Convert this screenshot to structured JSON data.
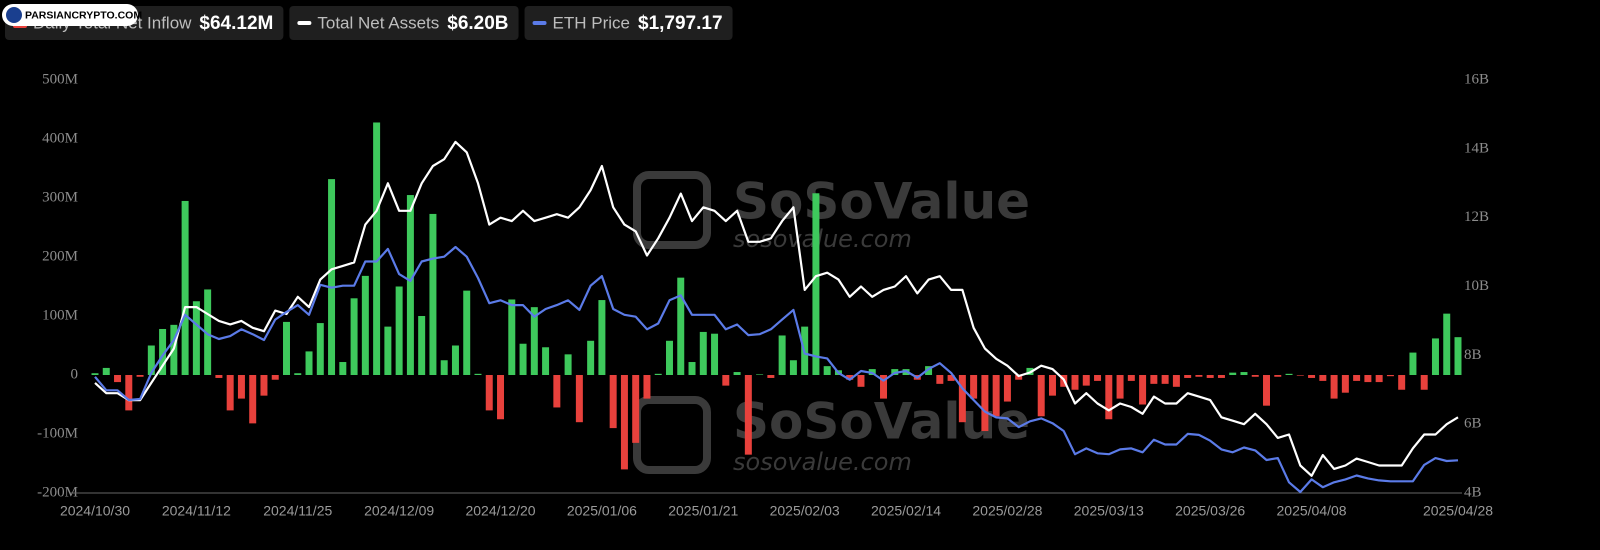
{
  "chart_data": {
    "type": "bar",
    "watermark": {
      "brand": "SoSoValue",
      "site": "sosovalue.com",
      "logo": "PARSIANCRYPTO.COM"
    },
    "categories": [
      "2024/10/30",
      null,
      null,
      null,
      null,
      null,
      null,
      null,
      null,
      "2024/11/12",
      null,
      null,
      null,
      null,
      null,
      null,
      null,
      null,
      "2024/11/25",
      null,
      null,
      null,
      null,
      null,
      null,
      null,
      null,
      "2024/12/09",
      null,
      null,
      null,
      null,
      null,
      null,
      null,
      null,
      "2024/12/20",
      null,
      null,
      null,
      null,
      null,
      null,
      null,
      null,
      "2025/01/06",
      null,
      null,
      null,
      null,
      null,
      null,
      null,
      null,
      "2025/01/21",
      null,
      null,
      null,
      null,
      null,
      null,
      null,
      null,
      "2025/02/03",
      null,
      null,
      null,
      null,
      null,
      null,
      null,
      null,
      "2025/02/14",
      null,
      null,
      null,
      null,
      null,
      null,
      null,
      null,
      "2025/02/28",
      null,
      null,
      null,
      null,
      null,
      null,
      null,
      null,
      "2025/03/13",
      null,
      null,
      null,
      null,
      null,
      null,
      null,
      null,
      "2025/03/26",
      null,
      null,
      null,
      null,
      null,
      null,
      null,
      null,
      "2025/04/08",
      null,
      null,
      null,
      null,
      null,
      null,
      null,
      null,
      null,
      null,
      null,
      null,
      "2025/04/28"
    ],
    "ylim": [
      -200,
      500
    ],
    "yticks": [
      {
        "value": -200,
        "label": "-200M"
      },
      {
        "value": -100,
        "label": "-100M"
      },
      0,
      {
        "value": 100,
        "label": "100M"
      },
      {
        "value": 200,
        "label": "200M"
      },
      {
        "value": 300,
        "label": "300M"
      },
      {
        "value": 400,
        "label": "400M"
      },
      {
        "value": 500,
        "label": "500M"
      }
    ],
    "y2lim": [
      4,
      16
    ],
    "y2ticks": [
      {
        "value": 4,
        "label": "4B"
      },
      {
        "value": 6,
        "label": "6B"
      },
      {
        "value": 8,
        "label": "8B"
      },
      {
        "value": 10,
        "label": "10B"
      },
      {
        "value": 12,
        "label": "12B"
      },
      {
        "value": 14,
        "label": "14B"
      },
      {
        "value": 16,
        "label": "16B"
      }
    ],
    "series": [
      {
        "name": "Daily Total Net Inflow",
        "legend_value": "$64.12M",
        "type": "bar",
        "color": "#e8413c",
        "positive_color": "#3ec95c",
        "values": [
          3,
          12,
          -12,
          -60,
          -3,
          50,
          78,
          85,
          295,
          125,
          145,
          -5,
          -60,
          -40,
          -82,
          -35,
          -8,
          90,
          3,
          40,
          88,
          332,
          22,
          130,
          168,
          428,
          82,
          150,
          305,
          100,
          273,
          25,
          50,
          143,
          2,
          -60,
          -75,
          128,
          53,
          115,
          47,
          -55,
          35,
          -80,
          58,
          127,
          -90,
          -160,
          -115,
          -40,
          2,
          58,
          165,
          22,
          73,
          70,
          -18,
          5,
          -135,
          1,
          -5,
          67,
          25,
          82,
          308,
          15,
          8,
          -8,
          -20,
          10,
          -40,
          10,
          10,
          -8,
          15,
          -15,
          -10,
          -80,
          -40,
          -95,
          -70,
          -45,
          -8,
          12,
          -70,
          -35,
          -20,
          -25,
          -18,
          -10,
          -75,
          -40,
          -10,
          -50,
          -15,
          -15,
          -20,
          -5,
          -3,
          -5,
          -5,
          4,
          5,
          -3,
          -52,
          -3,
          2,
          -1,
          -5,
          -10,
          -40,
          -30,
          -10,
          -12,
          -12,
          -2,
          -25,
          38,
          -25,
          62,
          104,
          64.12
        ]
      },
      {
        "name": "Total Net Assets",
        "legend_value": "$6.20B",
        "type": "line",
        "axis": "y2",
        "color": "#ffffff",
        "values": [
          7.2,
          6.9,
          6.9,
          6.7,
          6.7,
          7.2,
          7.7,
          8.2,
          9.4,
          9.4,
          9.2,
          9.0,
          8.9,
          9.0,
          8.8,
          8.7,
          9.3,
          9.2,
          9.7,
          9.4,
          10.2,
          10.5,
          10.6,
          10.7,
          11.8,
          12.2,
          13.0,
          12.2,
          12.2,
          13.0,
          13.5,
          13.7,
          14.2,
          13.9,
          13.0,
          11.8,
          12.0,
          11.9,
          12.2,
          11.9,
          12.0,
          12.1,
          12.0,
          12.3,
          12.8,
          13.5,
          12.3,
          11.8,
          11.6,
          10.9,
          11.4,
          12.0,
          12.7,
          11.9,
          12.3,
          12.2,
          11.9,
          12.2,
          11.3,
          11.3,
          11.4,
          11.9,
          12.3,
          9.9,
          10.3,
          10.4,
          10.2,
          9.7,
          10.0,
          9.7,
          9.9,
          10.0,
          10.3,
          9.8,
          10.2,
          10.3,
          9.9,
          9.9,
          8.8,
          8.2,
          7.9,
          7.7,
          7.4,
          7.5,
          7.7,
          7.6,
          7.3,
          6.6,
          6.9,
          6.6,
          6.4,
          6.6,
          6.5,
          6.3,
          6.8,
          6.6,
          6.6,
          6.9,
          6.8,
          6.7,
          6.2,
          6.1,
          6.0,
          6.3,
          6.0,
          5.6,
          5.7,
          4.8,
          4.5,
          5.1,
          4.7,
          4.8,
          5.0,
          4.9,
          4.8,
          4.8,
          4.8,
          5.3,
          5.7,
          5.7,
          6.0,
          6.2
        ]
      },
      {
        "name": "ETH Price",
        "legend_value": "$1,797.17",
        "type": "line",
        "color": "#5b7be8",
        "values": [
          2660,
          2520,
          2520,
          2420,
          2430,
          2700,
          2880,
          3040,
          3300,
          3200,
          3100,
          3050,
          3080,
          3150,
          3100,
          3040,
          3250,
          3330,
          3400,
          3300,
          3610,
          3580,
          3600,
          3600,
          3850,
          3850,
          3980,
          3720,
          3650,
          3850,
          3880,
          3900,
          4000,
          3900,
          3680,
          3420,
          3450,
          3400,
          3400,
          3280,
          3360,
          3400,
          3450,
          3350,
          3600,
          3700,
          3360,
          3300,
          3280,
          3150,
          3210,
          3450,
          3500,
          3300,
          3300,
          3300,
          3150,
          3200,
          3090,
          3100,
          3150,
          3250,
          3350,
          2900,
          2870,
          2850,
          2700,
          2630,
          2720,
          2700,
          2620,
          2700,
          2720,
          2650,
          2740,
          2800,
          2700,
          2540,
          2420,
          2300,
          2240,
          2230,
          2140,
          2200,
          2230,
          2180,
          2100,
          1860,
          1920,
          1870,
          1860,
          1910,
          1920,
          1880,
          2010,
          1960,
          1960,
          2070,
          2060,
          2000,
          1910,
          1880,
          1930,
          1900,
          1800,
          1820,
          1570,
          1470,
          1600,
          1520,
          1570,
          1600,
          1640,
          1610,
          1590,
          1580,
          1580,
          1580,
          1750,
          1820,
          1790,
          1797.17
        ]
      }
    ]
  }
}
